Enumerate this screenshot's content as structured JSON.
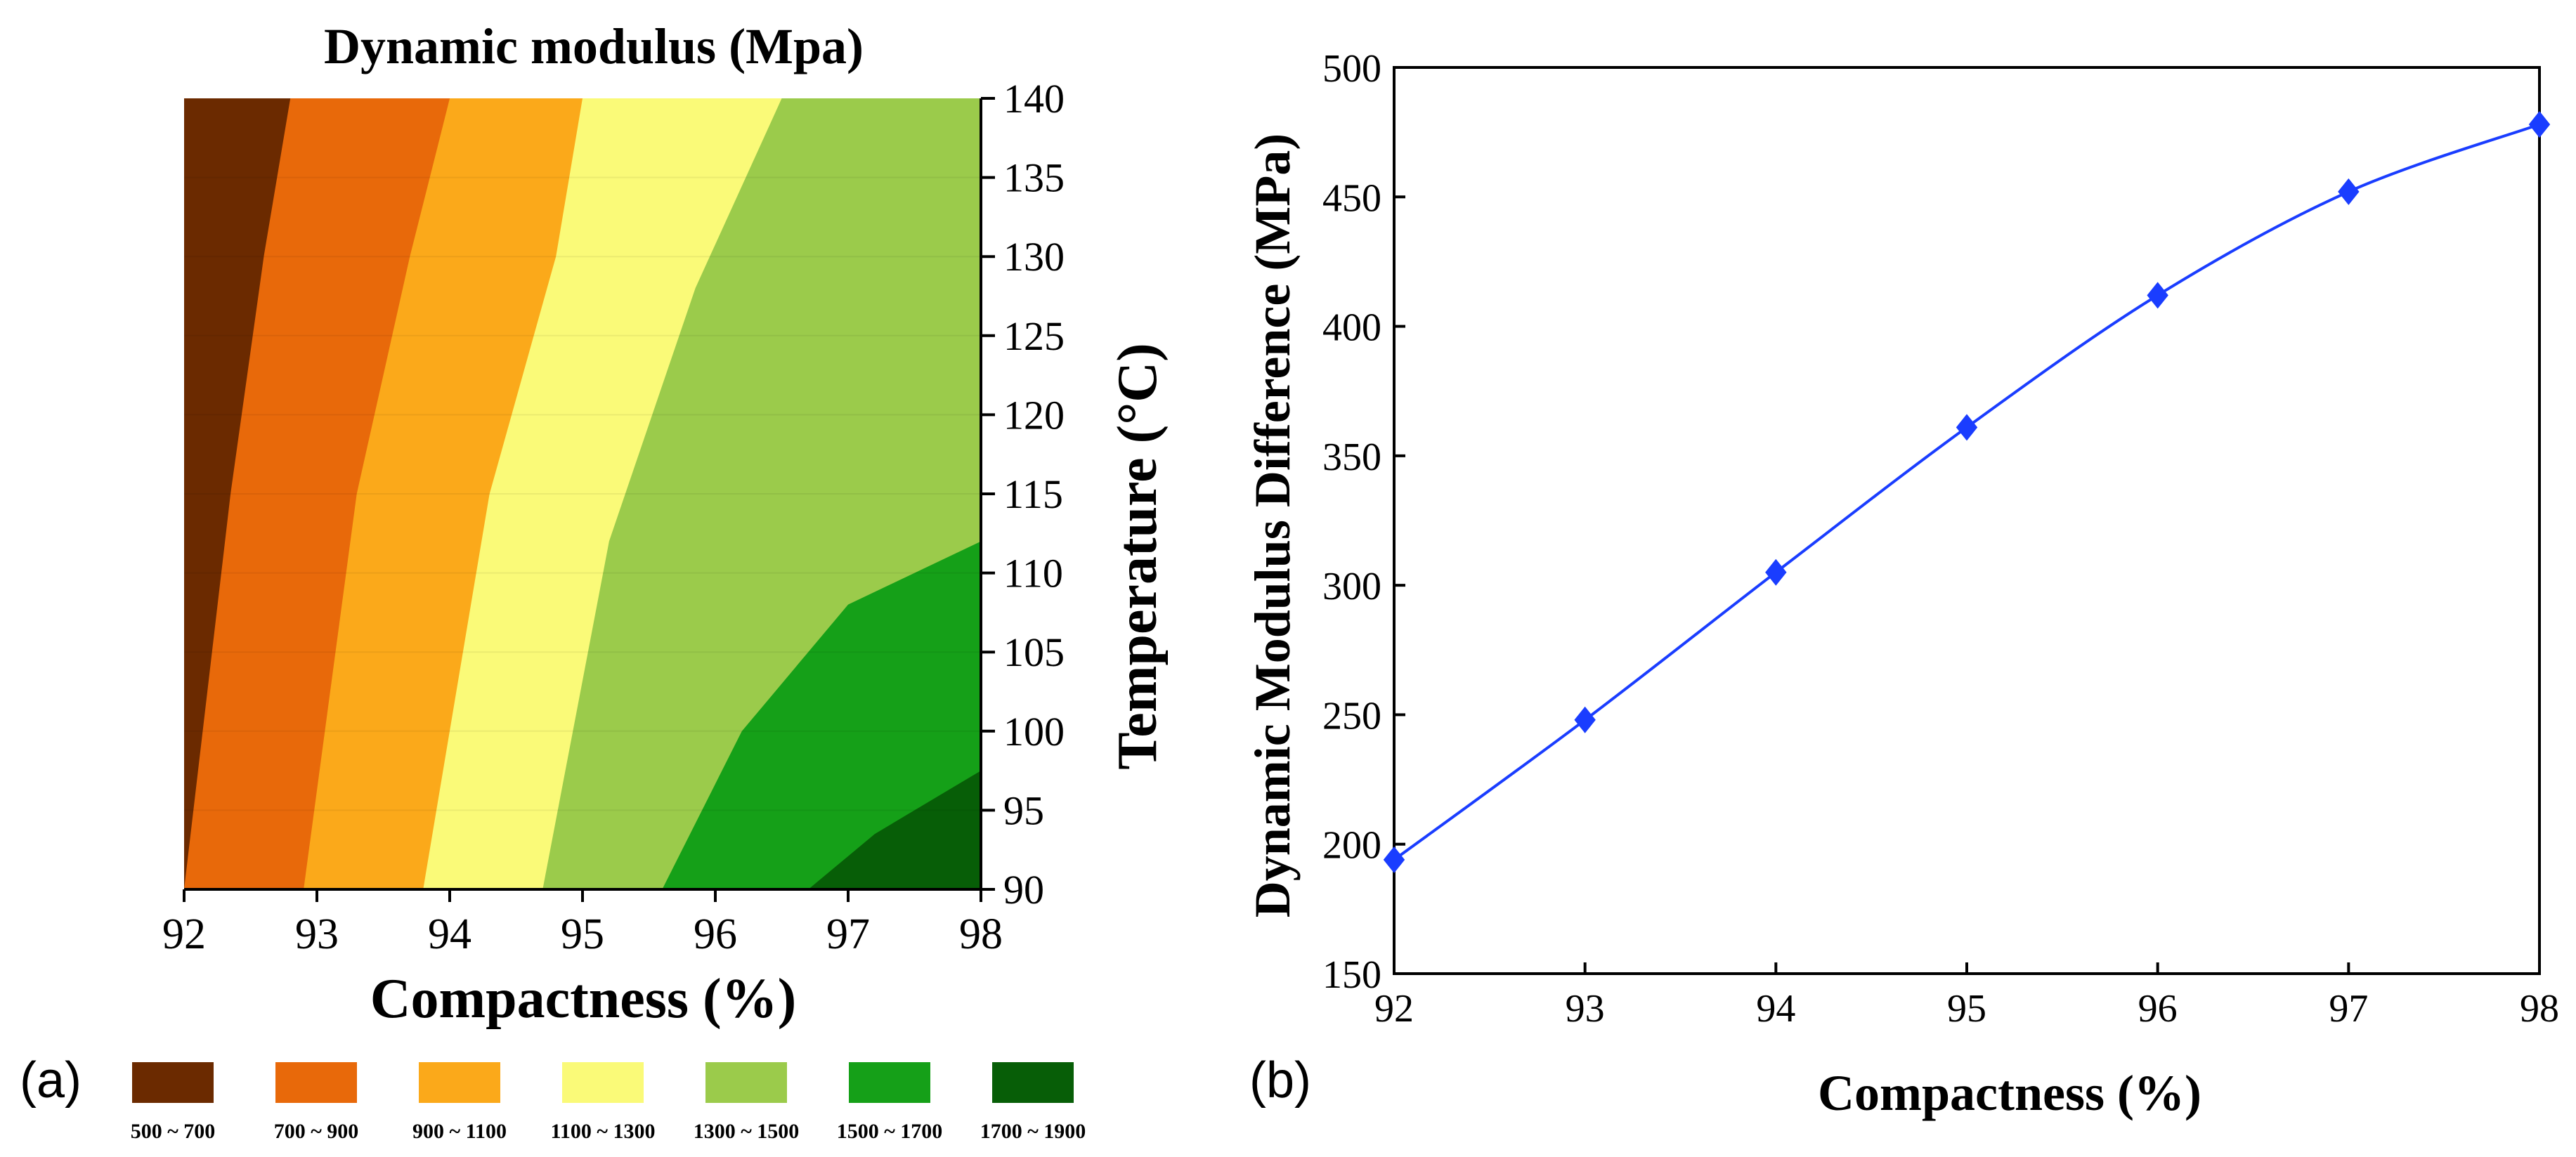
{
  "chart_data": [
    {
      "type": "contour",
      "panel_label": "(a)",
      "title": "Dynamic modulus (Mpa)",
      "xlabel": "Compactness (%)",
      "ylabel": "Temperature (°C)",
      "xlim": [
        92,
        98
      ],
      "ylim": [
        90,
        140
      ],
      "xticks": [
        "92",
        "93",
        "94",
        "95",
        "96",
        "97",
        "98"
      ],
      "yticks": [
        "90",
        "95",
        "100",
        "105",
        "110",
        "115",
        "120",
        "125",
        "130",
        "135",
        "140"
      ],
      "ytick_values": [
        90,
        95,
        100,
        105,
        110,
        115,
        120,
        125,
        130,
        135,
        140
      ],
      "xtick_values": [
        92,
        93,
        94,
        95,
        96,
        97,
        98
      ],
      "levels": [
        {
          "range": "500 ~ 700",
          "color": "#6B2A00"
        },
        {
          "range": "700 ~ 900",
          "color": "#E8690A"
        },
        {
          "range": "900 ~ 1100",
          "color": "#FBA91A"
        },
        {
          "range": "1100 ~ 1300",
          "color": "#FAFA78"
        },
        {
          "range": "1300 ~ 1500",
          "color": "#9BCB4B"
        },
        {
          "range": "1500 ~ 1700",
          "color": "#15A018"
        },
        {
          "range": "1700 ~ 1900",
          "color": "#075E07"
        }
      ],
      "boundaries": [
        {
          "between": "500~700 | 700~900",
          "points": [
            [
              92.0,
              90
            ],
            [
              92.35,
              115
            ],
            [
              92.6,
              130
            ],
            [
              92.8,
              140
            ]
          ]
        },
        {
          "between": "700~900 | 900~1100",
          "points": [
            [
              92.9,
              90
            ],
            [
              93.3,
              115
            ],
            [
              93.7,
              130
            ],
            [
              94.0,
              140
            ]
          ]
        },
        {
          "between": "900~1100 | 1100~1300",
          "points": [
            [
              93.8,
              90
            ],
            [
              94.3,
              115
            ],
            [
              94.8,
              130
            ],
            [
              95.0,
              140
            ]
          ]
        },
        {
          "between": "1100~1300 | 1300~1500",
          "points": [
            [
              94.7,
              90
            ],
            [
              95.2,
              112
            ],
            [
              95.85,
              128
            ],
            [
              96.5,
              140
            ]
          ]
        },
        {
          "between": "1300~1500 | 1500~1700",
          "points": [
            [
              95.6,
              90
            ],
            [
              96.2,
              100
            ],
            [
              97.0,
              108
            ],
            [
              98.0,
              112
            ]
          ]
        },
        {
          "between": "1500~1700 | 1700~1900",
          "points": [
            [
              96.7,
              90
            ],
            [
              97.2,
              93.5
            ],
            [
              98.0,
              97.5
            ]
          ]
        }
      ]
    },
    {
      "type": "line",
      "panel_label": "(b)",
      "title": "",
      "xlabel": "Compactness (%)",
      "ylabel": "Dynamic Modulus Difference (MPa)",
      "xlim": [
        92,
        98
      ],
      "ylim": [
        150,
        500
      ],
      "xticks": [
        "92",
        "93",
        "94",
        "95",
        "96",
        "97",
        "98"
      ],
      "yticks": [
        "150",
        "200",
        "250",
        "300",
        "350",
        "400",
        "450",
        "500"
      ],
      "ytick_values": [
        150,
        200,
        250,
        300,
        350,
        400,
        450,
        500
      ],
      "xtick_values": [
        92,
        93,
        94,
        95,
        96,
        97,
        98
      ],
      "series": [
        {
          "name": "Dynamic Modulus Difference",
          "color": "#1a3dff",
          "marker": "diamond",
          "x": [
            92,
            93,
            94,
            95,
            96,
            97,
            98
          ],
          "values": [
            194,
            248,
            305,
            361,
            412,
            452,
            478
          ]
        }
      ]
    }
  ]
}
